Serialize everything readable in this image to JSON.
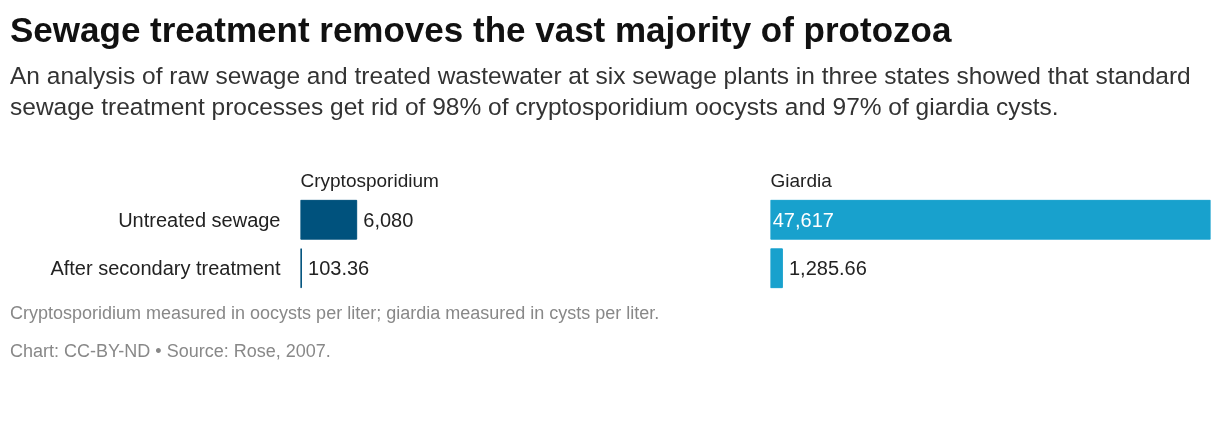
{
  "chart_data": [
    {
      "type": "bar",
      "orientation": "horizontal",
      "title": "Sewage treatment removes the vast majority of protozoa",
      "subtitle": "An analysis of raw sewage and treated wastewater at six sewage plants in three states showed that standard sewage treatment processes get rid of 98% of cryptosporidium oocysts and 97% of giardia cysts.",
      "categories": [
        "Untreated sewage",
        "After secondary treatment"
      ],
      "series": [
        {
          "name": "Cryptosporidium",
          "color": "#00527d",
          "values": [
            6080,
            103.36
          ],
          "value_labels": [
            "6,080",
            "103.36"
          ]
        }
      ],
      "tick_labels": "y",
      "annotations": [
        "Cryptosporidium measured in oocysts per liter; giardia measured in cysts per liter.",
        "Chart: CC-BY-ND • Source: Rose, 2007."
      ]
    },
    {
      "type": "bar",
      "orientation": "horizontal",
      "categories": [
        null,
        null
      ],
      "series": [
        {
          "name": "Giardia",
          "color": "#18a1cd",
          "values": [
            47617,
            1285.66
          ],
          "value_labels": [
            "47,617",
            "1,285.66"
          ]
        }
      ],
      "tick_labels": false
    }
  ]
}
